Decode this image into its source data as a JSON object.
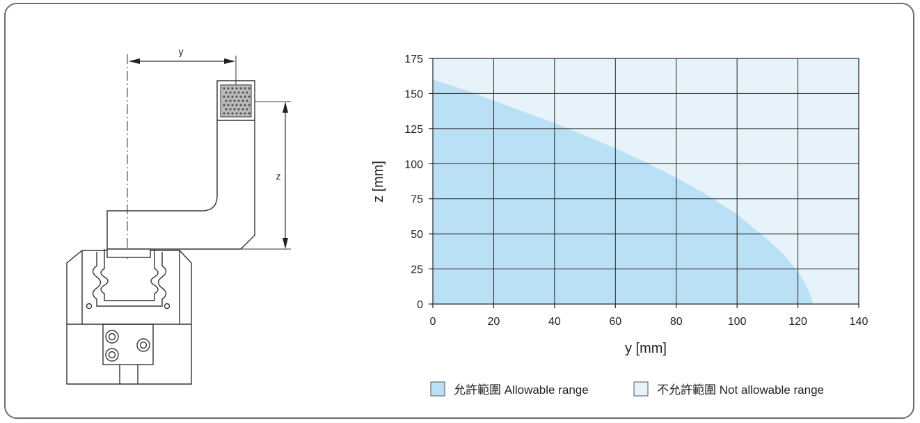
{
  "diagram": {
    "y_label": "y",
    "z_label": "z"
  },
  "chart_data": {
    "type": "area",
    "xlabel": "y [mm]",
    "ylabel": "z [mm]",
    "xlim": [
      0,
      140
    ],
    "ylim": [
      0,
      175
    ],
    "xticks": [
      "0",
      "20",
      "40",
      "60",
      "80",
      "100",
      "120",
      "140"
    ],
    "yticks": [
      "0",
      "25",
      "50",
      "75",
      "100",
      "125",
      "150",
      "175"
    ],
    "grid": true,
    "x": [
      0,
      10,
      20,
      30,
      40,
      50,
      60,
      70,
      80,
      90,
      100,
      110,
      115,
      120,
      122,
      124,
      125
    ],
    "y": [
      160,
      153,
      145,
      137,
      129,
      120,
      111,
      101,
      90,
      78,
      64,
      46,
      36,
      23,
      16,
      7,
      0
    ],
    "series": [
      {
        "name": "允許範圍 Allowable range",
        "color": "#b9e0f4"
      },
      {
        "name": "不允許範圍 Not allowable range",
        "color": "#e6f3fb"
      }
    ],
    "legend": [
      {
        "cn": "允許範圍",
        "en": "Allowable range",
        "color": "#b9e0f4"
      },
      {
        "cn": "不允許範圍",
        "en": "Not allowable range",
        "color": "#e6f3fb"
      }
    ],
    "legend_position": "bottom"
  }
}
